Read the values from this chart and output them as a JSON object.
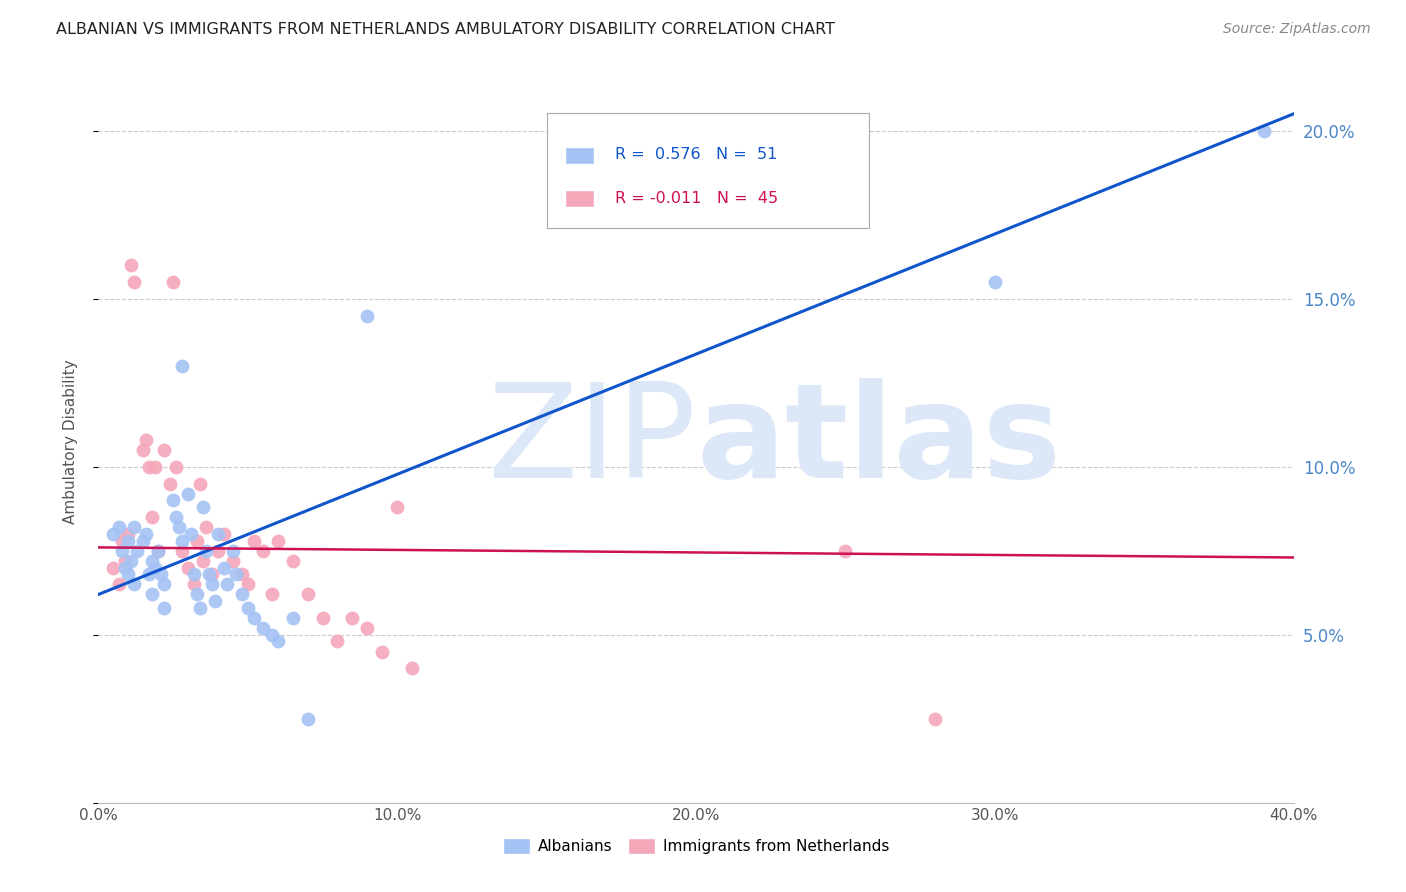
{
  "title": "ALBANIAN VS IMMIGRANTS FROM NETHERLANDS AMBULATORY DISABILITY CORRELATION CHART",
  "source": "Source: ZipAtlas.com",
  "ylabel": "Ambulatory Disability",
  "xmin": 0.0,
  "xmax": 0.4,
  "ymin": 0.0,
  "ymax": 0.215,
  "yticks": [
    0.0,
    0.05,
    0.1,
    0.15,
    0.2
  ],
  "ytick_labels": [
    "",
    "5.0%",
    "10.0%",
    "15.0%",
    "20.0%"
  ],
  "xticks": [
    0.0,
    0.1,
    0.2,
    0.3,
    0.4
  ],
  "xtick_labels": [
    "0.0%",
    "10.0%",
    "20.0%",
    "30.0%",
    "40.0%"
  ],
  "blue_R": 0.576,
  "blue_N": 51,
  "pink_R": -0.011,
  "pink_N": 45,
  "blue_color": "#a4c2f4",
  "pink_color": "#f4a7b9",
  "blue_line_color": "#1155cc",
  "pink_line_color": "#cc1155",
  "watermark_color": "#dce8f8",
  "background_color": "#ffffff",
  "grid_color": "#cccccc",
  "blue_line_x0": 0.0,
  "blue_line_y0": 0.062,
  "blue_line_x1": 0.4,
  "blue_line_y1": 0.205,
  "pink_line_x0": 0.0,
  "pink_line_y0": 0.076,
  "pink_line_x1": 0.4,
  "pink_line_y1": 0.073,
  "blue_scatter_x": [
    0.005,
    0.007,
    0.008,
    0.009,
    0.01,
    0.01,
    0.011,
    0.012,
    0.012,
    0.013,
    0.015,
    0.016,
    0.017,
    0.018,
    0.018,
    0.019,
    0.02,
    0.021,
    0.022,
    0.022,
    0.025,
    0.026,
    0.027,
    0.028,
    0.028,
    0.03,
    0.031,
    0.032,
    0.033,
    0.034,
    0.035,
    0.036,
    0.037,
    0.038,
    0.039,
    0.04,
    0.042,
    0.043,
    0.045,
    0.046,
    0.048,
    0.05,
    0.052,
    0.055,
    0.058,
    0.06,
    0.065,
    0.07,
    0.09,
    0.3,
    0.39
  ],
  "blue_scatter_y": [
    0.08,
    0.082,
    0.075,
    0.07,
    0.078,
    0.068,
    0.072,
    0.065,
    0.082,
    0.075,
    0.078,
    0.08,
    0.068,
    0.062,
    0.072,
    0.07,
    0.075,
    0.068,
    0.065,
    0.058,
    0.09,
    0.085,
    0.082,
    0.13,
    0.078,
    0.092,
    0.08,
    0.068,
    0.062,
    0.058,
    0.088,
    0.075,
    0.068,
    0.065,
    0.06,
    0.08,
    0.07,
    0.065,
    0.075,
    0.068,
    0.062,
    0.058,
    0.055,
    0.052,
    0.05,
    0.048,
    0.055,
    0.025,
    0.145,
    0.155,
    0.2
  ],
  "pink_scatter_x": [
    0.005,
    0.007,
    0.008,
    0.009,
    0.01,
    0.011,
    0.012,
    0.015,
    0.016,
    0.017,
    0.018,
    0.019,
    0.02,
    0.022,
    0.024,
    0.025,
    0.026,
    0.028,
    0.03,
    0.032,
    0.033,
    0.034,
    0.035,
    0.036,
    0.038,
    0.04,
    0.042,
    0.045,
    0.048,
    0.05,
    0.052,
    0.055,
    0.058,
    0.06,
    0.065,
    0.07,
    0.075,
    0.08,
    0.085,
    0.09,
    0.095,
    0.1,
    0.105,
    0.25,
    0.28
  ],
  "pink_scatter_y": [
    0.07,
    0.065,
    0.078,
    0.072,
    0.08,
    0.16,
    0.155,
    0.105,
    0.108,
    0.1,
    0.085,
    0.1,
    0.075,
    0.105,
    0.095,
    0.155,
    0.1,
    0.075,
    0.07,
    0.065,
    0.078,
    0.095,
    0.072,
    0.082,
    0.068,
    0.075,
    0.08,
    0.072,
    0.068,
    0.065,
    0.078,
    0.075,
    0.062,
    0.078,
    0.072,
    0.062,
    0.055,
    0.048,
    0.055,
    0.052,
    0.045,
    0.088,
    0.04,
    0.075,
    0.025
  ]
}
